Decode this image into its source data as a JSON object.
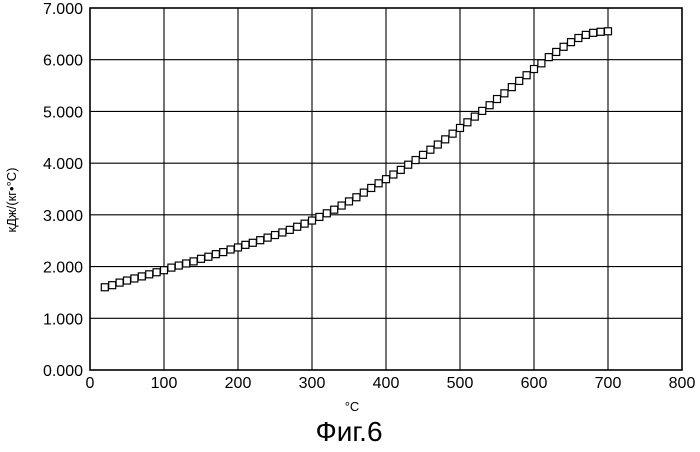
{
  "chart_data": {
    "type": "scatter",
    "title": "",
    "caption": "Фиг.6",
    "xlabel": "°C",
    "ylabel": "кДж/(кг•°C)",
    "xlim": [
      0,
      800
    ],
    "ylim": [
      0,
      7
    ],
    "grid": true,
    "marker": "open-square",
    "x_ticks": [
      {
        "value": 0,
        "label": "0"
      },
      {
        "value": 100,
        "label": "100"
      },
      {
        "value": 200,
        "label": "200"
      },
      {
        "value": 300,
        "label": "300"
      },
      {
        "value": 400,
        "label": "400"
      },
      {
        "value": 500,
        "label": "500"
      },
      {
        "value": 600,
        "label": "600"
      },
      {
        "value": 700,
        "label": "700"
      },
      {
        "value": 800,
        "label": "800"
      }
    ],
    "y_ticks": [
      {
        "value": 0,
        "label": "0.000"
      },
      {
        "value": 1,
        "label": "1.000"
      },
      {
        "value": 2,
        "label": "2.000"
      },
      {
        "value": 3,
        "label": "3.000"
      },
      {
        "value": 4,
        "label": "4.000"
      },
      {
        "value": 5,
        "label": "5.000"
      },
      {
        "value": 6,
        "label": "6.000"
      },
      {
        "value": 7,
        "label": "7.000"
      }
    ],
    "series": [
      {
        "x": [
          20,
          30,
          40,
          50,
          60,
          70,
          80,
          90,
          100,
          110,
          120,
          130,
          140,
          150,
          160,
          170,
          180,
          190,
          200,
          210,
          220,
          230,
          240,
          250,
          260,
          270,
          280,
          290,
          300,
          310,
          320,
          330,
          340,
          350,
          360,
          370,
          380,
          390,
          400,
          410,
          420,
          430,
          440,
          450,
          460,
          470,
          480,
          490,
          500,
          510,
          520,
          530,
          540,
          550,
          560,
          570,
          580,
          590,
          600,
          610,
          620,
          630,
          640,
          650,
          660,
          670,
          680,
          690,
          700
        ],
        "y": [
          1.6,
          1.64,
          1.69,
          1.73,
          1.77,
          1.81,
          1.85,
          1.89,
          1.93,
          1.98,
          2.02,
          2.06,
          2.1,
          2.15,
          2.19,
          2.24,
          2.28,
          2.33,
          2.37,
          2.42,
          2.46,
          2.51,
          2.56,
          2.61,
          2.66,
          2.71,
          2.77,
          2.83,
          2.89,
          2.96,
          3.03,
          3.1,
          3.18,
          3.26,
          3.34,
          3.43,
          3.52,
          3.61,
          3.69,
          3.78,
          3.87,
          3.97,
          4.06,
          4.16,
          4.26,
          4.36,
          4.46,
          4.57,
          4.68,
          4.79,
          4.9,
          5.01,
          5.12,
          5.24,
          5.35,
          5.47,
          5.59,
          5.7,
          5.82,
          5.93,
          6.05,
          6.15,
          6.25,
          6.34,
          6.42,
          6.48,
          6.52,
          6.54,
          6.55
        ]
      }
    ]
  }
}
